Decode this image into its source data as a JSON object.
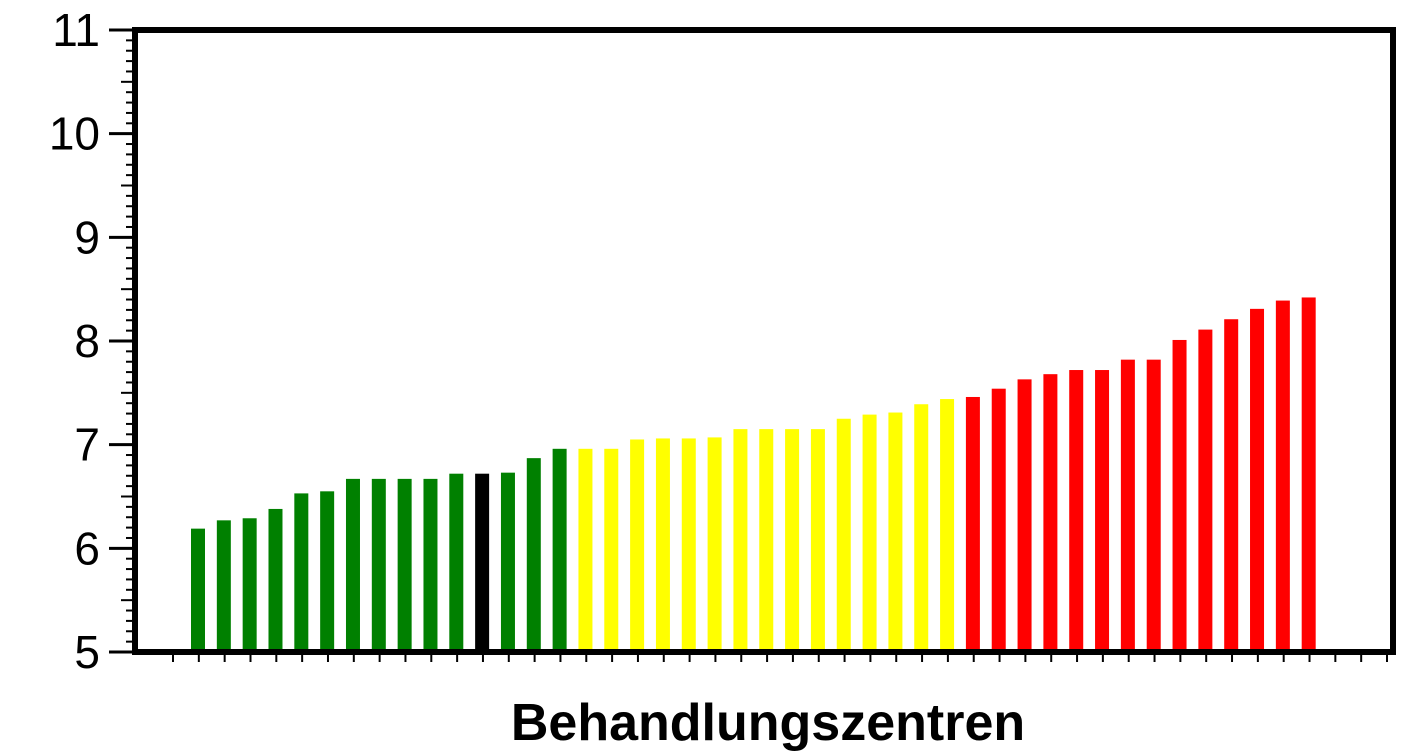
{
  "chart_data": {
    "type": "bar",
    "title": "",
    "xlabel": "Behandlungszentren",
    "ylabel": "",
    "ylim": [
      5,
      11
    ],
    "yticks": [
      5,
      6,
      7,
      8,
      9,
      10,
      11
    ],
    "ytick_labels": [
      "5",
      "6",
      "7",
      "8",
      "9",
      "10",
      "11"
    ],
    "grid": false,
    "legend": "none",
    "values": [
      6.19,
      6.27,
      6.29,
      6.38,
      6.53,
      6.55,
      6.67,
      6.67,
      6.67,
      6.67,
      6.72,
      6.72,
      6.73,
      6.87,
      6.96,
      6.96,
      6.96,
      7.05,
      7.06,
      7.06,
      7.07,
      7.15,
      7.15,
      7.15,
      7.15,
      7.25,
      7.29,
      7.31,
      7.39,
      7.44,
      7.46,
      7.54,
      7.63,
      7.68,
      7.72,
      7.72,
      7.82,
      7.82,
      8.01,
      8.11,
      8.21,
      8.31,
      8.39,
      8.42
    ],
    "colors": [
      "#008000",
      "#008000",
      "#008000",
      "#008000",
      "#008000",
      "#008000",
      "#008000",
      "#008000",
      "#008000",
      "#008000",
      "#008000",
      "#000000",
      "#008000",
      "#008000",
      "#008000",
      "#ffff00",
      "#ffff00",
      "#ffff00",
      "#ffff00",
      "#ffff00",
      "#ffff00",
      "#ffff00",
      "#ffff00",
      "#ffff00",
      "#ffff00",
      "#ffff00",
      "#ffff00",
      "#ffff00",
      "#ffff00",
      "#ffff00",
      "#ff0000",
      "#ff0000",
      "#ff0000",
      "#ff0000",
      "#ff0000",
      "#ff0000",
      "#ff0000",
      "#ff0000",
      "#ff0000",
      "#ff0000",
      "#ff0000",
      "#ff0000",
      "#ff0000",
      "#ff0000"
    ],
    "color_groups": {
      "green": "#008000",
      "black": "#000000",
      "yellow": "#ffff00",
      "red": "#ff0000"
    }
  }
}
